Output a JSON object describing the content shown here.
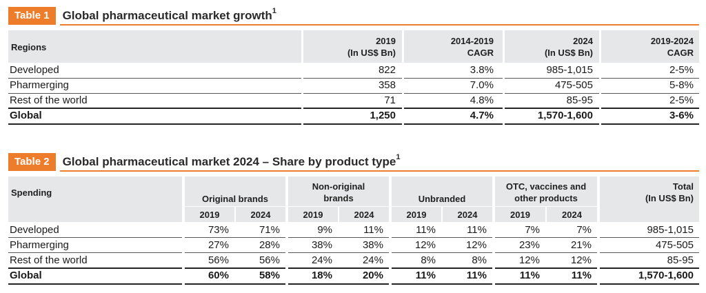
{
  "table1": {
    "tag": "Table 1",
    "title": "Global pharmaceutical market growth",
    "title_sup": "1",
    "headers": {
      "regions": "Regions",
      "c1a": "2019",
      "c1b": "(In US$ Bn)",
      "c2a": "2014-2019",
      "c2b": "CAGR",
      "c3a": "2024",
      "c3b": "(In US$ Bn)",
      "c4a": "2019-2024",
      "c4b": "CAGR"
    },
    "rows": [
      {
        "region": "Developed",
        "v2019": "822",
        "cagr1": "3.8%",
        "v2024": "985-1,015",
        "cagr2": "2-5%"
      },
      {
        "region": "Pharmerging",
        "v2019": "358",
        "cagr1": "7.0%",
        "v2024": "475-505",
        "cagr2": "5-8%"
      },
      {
        "region": "Rest of the world",
        "v2019": "71",
        "cagr1": "4.8%",
        "v2024": "85-95",
        "cagr2": "2-5%"
      },
      {
        "region": "Global",
        "v2019": "1,250",
        "cagr1": "4.7%",
        "v2024": "1,570-1,600",
        "cagr2": "3-6%"
      }
    ]
  },
  "table2": {
    "tag": "Table 2",
    "title": "Global pharmaceutical market 2024 – Share by product type",
    "title_sup": "1",
    "headers": {
      "spending": "Spending",
      "orig": "Original brands",
      "nonorig_a": "Non-original",
      "nonorig_b": "brands",
      "unbr": "Unbranded",
      "otc_a": "OTC, vaccines and",
      "otc_b": "other products",
      "total_a": "Total",
      "total_b": "(In US$ Bn)",
      "y2019": "2019",
      "y2024": "2024"
    },
    "rows": [
      {
        "label": "Developed",
        "vals": [
          "73%",
          "71%",
          "9%",
          "11%",
          "11%",
          "11%",
          "7%",
          "7%"
        ],
        "total": "985-1,015"
      },
      {
        "label": "Pharmerging",
        "vals": [
          "27%",
          "28%",
          "38%",
          "38%",
          "12%",
          "12%",
          "23%",
          "21%"
        ],
        "total": "475-505"
      },
      {
        "label": "Rest of the world",
        "vals": [
          "56%",
          "56%",
          "24%",
          "24%",
          "8%",
          "8%",
          "12%",
          "12%"
        ],
        "total": "85-95"
      },
      {
        "label": "Global",
        "vals": [
          "60%",
          "58%",
          "18%",
          "20%",
          "11%",
          "11%",
          "11%",
          "11%"
        ],
        "total": "1,570-1,600"
      }
    ]
  },
  "colors": {
    "accent": "#ee7d2b",
    "header_bg": "#e6e7e8"
  }
}
